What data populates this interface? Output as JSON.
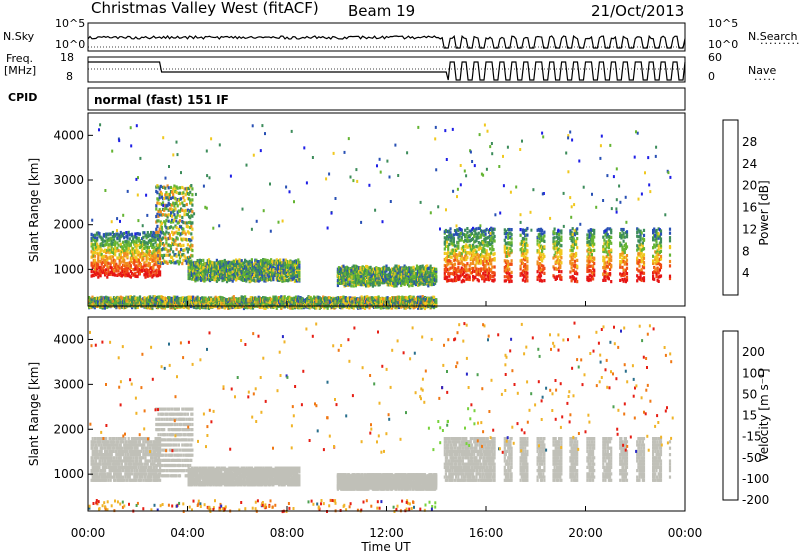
{
  "header": {
    "station": "Christmas Valley West (fitACF)",
    "beam": "Beam 19",
    "date": "21/Oct/2013"
  },
  "noise_panel": {
    "left_label": "N.Sky",
    "right_label": "N.Search",
    "left_ticks": [
      "10^5",
      "10^0"
    ],
    "right_ticks": [
      "10^5",
      "10^0"
    ]
  },
  "freq_panel": {
    "left_label_1": "Freq.",
    "left_label_2": "[MHz]",
    "right_label": "Nave",
    "left_ticks": [
      "18",
      "8"
    ],
    "right_ticks": [
      "60",
      "0"
    ]
  },
  "cpid": {
    "label": "CPID",
    "value": "normal (fast) 151 IF"
  },
  "chart_data": [
    {
      "type": "heatmap",
      "name": "power",
      "ylabel": "Slant Range [km]",
      "yticks": [
        "1000",
        "2000",
        "3000",
        "4000"
      ],
      "ylim": [
        180,
        4500
      ],
      "xlim": [
        0,
        24
      ],
      "colorbar": {
        "label": "Power [dB]",
        "ticks": [
          "4",
          "8",
          "12",
          "16",
          "20",
          "24",
          "28"
        ],
        "colors": [
          "#1e1ee6",
          "#2850b4",
          "#3c8c5a",
          "#64b432",
          "#f0c81e",
          "#f08c1e",
          "#f04b14",
          "#e61414"
        ]
      },
      "echo_regions": [
        {
          "t0": 0.1,
          "t1": 2.9,
          "r0": 900,
          "r1": 1900,
          "level": "high"
        },
        {
          "t0": 2.7,
          "t1": 4.2,
          "r0": 1200,
          "r1": 3000,
          "level": "mid"
        },
        {
          "t0": 4.0,
          "t1": 8.5,
          "r0": 800,
          "r1": 1250,
          "level": "low"
        },
        {
          "t0": 10.0,
          "t1": 14.0,
          "r0": 700,
          "r1": 1100,
          "level": "low"
        },
        {
          "t0": 14.3,
          "t1": 23.4,
          "r0": 800,
          "r1": 2000,
          "level": "high"
        },
        {
          "t0": 0.0,
          "t1": 14.0,
          "r0": 200,
          "r1": 400,
          "level": "ground"
        }
      ]
    },
    {
      "type": "heatmap",
      "name": "velocity",
      "ylabel": "Slant Range [km]",
      "yticks": [
        "1000",
        "2000",
        "3000",
        "4000"
      ],
      "ylim": [
        180,
        4500
      ],
      "xlim": [
        0,
        24
      ],
      "colorbar": {
        "label": "Velocity [m s⁻¹]",
        "ticks": [
          "200",
          "100",
          "50",
          "15",
          "-15",
          "-50",
          "-100",
          "-200"
        ],
        "colors": [
          "#2828c8",
          "#286e8c",
          "#4ca050",
          "#78d23c",
          "#c8c8c0",
          "#f0b428",
          "#f07814",
          "#e61e14"
        ]
      },
      "ground_scatter_color": "#c0c0b8"
    }
  ],
  "x_axis": {
    "label": "Time UT",
    "ticks": [
      "00:00",
      "04:00",
      "08:00",
      "12:00",
      "16:00",
      "20:00",
      "00:00"
    ]
  }
}
